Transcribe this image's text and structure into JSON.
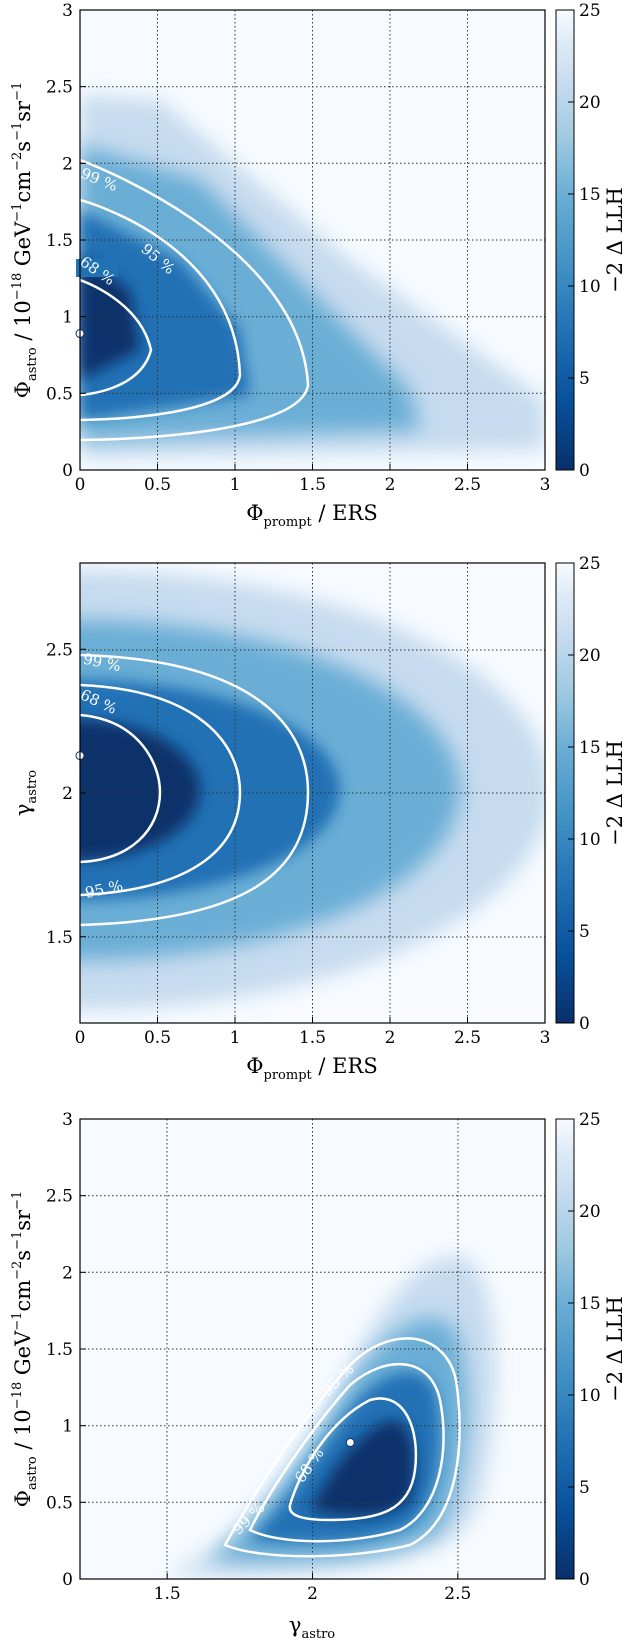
{
  "chart_data": [
    {
      "type": "heatmap",
      "id": "panel1",
      "xlabel": {
        "base": "Φ",
        "sub": "prompt",
        "rest": " / ERS"
      },
      "ylabel": {
        "parts": [
          {
            "t": "Φ"
          },
          {
            "t": "astro",
            "s": "sub"
          },
          {
            "t": " / 10"
          },
          {
            "t": "−18",
            "s": "sup"
          },
          {
            "t": " GeV"
          },
          {
            "t": "−1",
            "s": "sup"
          },
          {
            "t": "cm"
          },
          {
            "t": "−2",
            "s": "sup"
          },
          {
            "t": "s"
          },
          {
            "t": "−1",
            "s": "sup"
          },
          {
            "t": "sr"
          },
          {
            "t": "−1",
            "s": "sup"
          }
        ]
      },
      "xlim": [
        0,
        3
      ],
      "ylim": [
        0,
        3
      ],
      "xticks": [
        0,
        0.5,
        1,
        1.5,
        2,
        2.5,
        3
      ],
      "xtick_labels": [
        "0",
        "0.5",
        "1",
        "1.5",
        "2",
        "2.5",
        "3"
      ],
      "yticks": [
        0,
        0.5,
        1,
        1.5,
        2,
        2.5,
        3
      ],
      "ytick_labels": [
        "0",
        "0.5",
        "1",
        "1.5",
        "2",
        "2.5",
        "3"
      ],
      "grid": true,
      "best_fit": [
        0.0,
        0.89
      ],
      "contour_labels": [
        "68 %",
        "95 %",
        "99 %"
      ],
      "colorbar": {
        "label": "−2 Δ LLH",
        "range": [
          0,
          25
        ],
        "ticks": [
          0,
          5,
          10,
          15,
          20,
          25
        ],
        "tick_labels": [
          "0",
          "5",
          "10",
          "15",
          "20",
          "25"
        ]
      }
    },
    {
      "type": "heatmap",
      "id": "panel2",
      "xlabel": {
        "base": "Φ",
        "sub": "prompt",
        "rest": " / ERS"
      },
      "ylabel": {
        "parts": [
          {
            "t": "γ"
          },
          {
            "t": "astro",
            "s": "sub"
          }
        ]
      },
      "xlim": [
        0,
        3
      ],
      "ylim": [
        1.2,
        2.8
      ],
      "xticks": [
        0,
        0.5,
        1,
        1.5,
        2,
        2.5,
        3
      ],
      "xtick_labels": [
        "0",
        "0.5",
        "1",
        "1.5",
        "2",
        "2.5",
        "3"
      ],
      "yticks": [
        1.5,
        2,
        2.5
      ],
      "ytick_labels": [
        "1.5",
        "2",
        "2.5"
      ],
      "grid": true,
      "best_fit": [
        0.0,
        2.13
      ],
      "contour_labels": [
        "68 %",
        "95 %",
        "99 %"
      ],
      "colorbar": {
        "label": "−2 Δ LLH",
        "range": [
          0,
          25
        ],
        "ticks": [
          0,
          5,
          10,
          15,
          20,
          25
        ],
        "tick_labels": [
          "0",
          "5",
          "10",
          "15",
          "20",
          "25"
        ]
      }
    },
    {
      "type": "heatmap",
      "id": "panel3",
      "xlabel": {
        "base": "γ",
        "sub": "astro",
        "rest": ""
      },
      "ylabel": {
        "parts": [
          {
            "t": "Φ"
          },
          {
            "t": "astro",
            "s": "sub"
          },
          {
            "t": " / 10"
          },
          {
            "t": "−18",
            "s": "sup"
          },
          {
            "t": " GeV"
          },
          {
            "t": "−1",
            "s": "sup"
          },
          {
            "t": "cm"
          },
          {
            "t": "−2",
            "s": "sup"
          },
          {
            "t": "s"
          },
          {
            "t": "−1",
            "s": "sup"
          },
          {
            "t": "sr"
          },
          {
            "t": "−1",
            "s": "sup"
          }
        ]
      },
      "xlim": [
        1.2,
        2.8
      ],
      "ylim": [
        0,
        3
      ],
      "xticks": [
        1.5,
        2,
        2.5
      ],
      "xtick_labels": [
        "1.5",
        "2",
        "2.5"
      ],
      "yticks": [
        0,
        0.5,
        1,
        1.5,
        2,
        2.5,
        3
      ],
      "ytick_labels": [
        "0",
        "0.5",
        "1",
        "1.5",
        "2",
        "2.5",
        "3"
      ],
      "grid": true,
      "best_fit": [
        2.13,
        0.89
      ],
      "contour_labels": [
        "68 %",
        "95 %",
        "99 %"
      ],
      "colorbar": {
        "label": "−2 Δ LLH",
        "range": [
          0,
          25
        ],
        "ticks": [
          0,
          5,
          10,
          15,
          20,
          25
        ],
        "tick_labels": [
          "0",
          "5",
          "10",
          "15",
          "20",
          "25"
        ]
      }
    }
  ]
}
